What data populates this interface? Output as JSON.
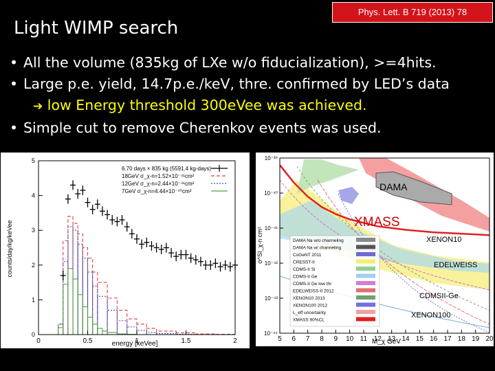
{
  "slide": {
    "title": "Light WIMP search",
    "reference": "Phys. Lett. B 719 (2013) 78",
    "bullets": [
      {
        "text": "All the volume (835kg of LXe w/o fiducialization), >=4hits."
      },
      {
        "text": "Large p.e. yield, 14.7p.e./keV, thre. confirmed by LED’s data",
        "sub": "low Energy threshold 300eVee was achieved."
      },
      {
        "text": "Simple cut to remove Cherenkov events was used."
      }
    ],
    "bullet_char": "•",
    "arrow_char": "➔"
  },
  "chart_data": [
    {
      "type": "line",
      "title": "",
      "xlabel": "energy [keVee]",
      "ylabel": "counts/day/kg/keVee",
      "xlim": [
        0,
        2
      ],
      "ylim": [
        0,
        5
      ],
      "xticks": [
        0,
        0.5,
        1,
        1.5,
        2
      ],
      "xtick_labels": [
        "0",
        "0.5",
        "1",
        "1.5",
        "2"
      ],
      "yticks": [
        0,
        1,
        2,
        3,
        4,
        5
      ],
      "legend_placement": "top-right",
      "legend": [
        {
          "label": "6.70 days × 835 kg (5591.4 kg-days)",
          "style": "data"
        },
        {
          "label": "18GeV σ_χ-n=1.52×10⁻⁴¹cm²",
          "style": "dashed",
          "color": "#d94040"
        },
        {
          "label": "12GeV σ_χ-n=2.44×10⁻⁴¹cm²",
          "style": "dotted",
          "color": "#4050c0"
        },
        {
          "label": "7GeV σ_χ-n=4.44×10⁻⁴⁰cm²",
          "style": "solid",
          "color": "#50a040"
        }
      ],
      "data_points": [
        {
          "x": 0.25,
          "y": 1.7
        },
        {
          "x": 0.3,
          "y": 3.9
        },
        {
          "x": 0.35,
          "y": 4.3
        },
        {
          "x": 0.4,
          "y": 4.05
        },
        {
          "x": 0.45,
          "y": 4.15
        },
        {
          "x": 0.5,
          "y": 3.8
        },
        {
          "x": 0.55,
          "y": 3.6
        },
        {
          "x": 0.6,
          "y": 3.75
        },
        {
          "x": 0.65,
          "y": 3.55
        },
        {
          "x": 0.7,
          "y": 3.45
        },
        {
          "x": 0.75,
          "y": 3.3
        },
        {
          "x": 0.8,
          "y": 3.25
        },
        {
          "x": 0.85,
          "y": 3.3
        },
        {
          "x": 0.9,
          "y": 3.1
        },
        {
          "x": 0.95,
          "y": 2.9
        },
        {
          "x": 1.0,
          "y": 2.75
        },
        {
          "x": 1.05,
          "y": 2.6
        },
        {
          "x": 1.1,
          "y": 2.65
        },
        {
          "x": 1.15,
          "y": 2.55
        },
        {
          "x": 1.2,
          "y": 2.5
        },
        {
          "x": 1.25,
          "y": 2.45
        },
        {
          "x": 1.3,
          "y": 2.5
        },
        {
          "x": 1.35,
          "y": 2.35
        },
        {
          "x": 1.4,
          "y": 2.25
        },
        {
          "x": 1.45,
          "y": 2.3
        },
        {
          "x": 1.5,
          "y": 2.3
        },
        {
          "x": 1.55,
          "y": 2.2
        },
        {
          "x": 1.6,
          "y": 2.15
        },
        {
          "x": 1.65,
          "y": 2.1
        },
        {
          "x": 1.7,
          "y": 2.0
        },
        {
          "x": 1.75,
          "y": 2.0
        },
        {
          "x": 1.8,
          "y": 2.05
        },
        {
          "x": 1.85,
          "y": 1.95
        },
        {
          "x": 1.9,
          "y": 2.0
        },
        {
          "x": 1.95,
          "y": 1.95
        },
        {
          "x": 2.0,
          "y": 2.0
        }
      ],
      "series": [
        {
          "name": "18GeV",
          "color": "#d94040",
          "dash": "5,3",
          "x": [
            0.15,
            0.2,
            0.25,
            0.3,
            0.35,
            0.4,
            0.45,
            0.5,
            0.55,
            0.6,
            0.7,
            0.8,
            0.9,
            1.0,
            1.1,
            1.2,
            1.4,
            1.6,
            1.8,
            2.0
          ],
          "y": [
            0,
            0.3,
            2.7,
            3.4,
            3.2,
            2.9,
            2.5,
            2.2,
            1.8,
            1.5,
            1.05,
            0.7,
            0.45,
            0.3,
            0.18,
            0.1,
            0.05,
            0.02,
            0.01,
            0
          ]
        },
        {
          "name": "12GeV",
          "color": "#4050c0",
          "dash": "2,2",
          "x": [
            0.15,
            0.2,
            0.25,
            0.3,
            0.35,
            0.4,
            0.45,
            0.5,
            0.55,
            0.6,
            0.7,
            0.8,
            0.9,
            1.0,
            1.1,
            1.2,
            1.4,
            1.6,
            2.0
          ],
          "y": [
            0,
            0.3,
            2.1,
            3.1,
            3.0,
            2.6,
            2.2,
            1.8,
            1.4,
            1.1,
            0.7,
            0.4,
            0.22,
            0.12,
            0.06,
            0.03,
            0.01,
            0,
            0
          ]
        },
        {
          "name": "7GeV",
          "color": "#50a040",
          "dash": "",
          "x": [
            0.15,
            0.2,
            0.25,
            0.3,
            0.35,
            0.4,
            0.45,
            0.5,
            0.55,
            0.6,
            0.65,
            0.7,
            0.8,
            0.9,
            1.0,
            1.2,
            1.5,
            2.0
          ],
          "y": [
            0,
            0.2,
            1.45,
            1.9,
            1.6,
            1.15,
            0.8,
            0.5,
            0.3,
            0.18,
            0.1,
            0.06,
            0.02,
            0.01,
            0,
            0,
            0,
            0
          ]
        }
      ]
    },
    {
      "type": "line",
      "title": "",
      "xlabel": "M_χ  GeV",
      "ylabel": "σ^SI_χ-n  cm²",
      "log_y": true,
      "xlim": [
        5,
        20
      ],
      "ylim_exp": [
        -44,
        -39
      ],
      "xticks": [
        5,
        6,
        7,
        8,
        9,
        10,
        11,
        12,
        13,
        14,
        15,
        16,
        17,
        18,
        19,
        20
      ],
      "ytick_labels": [
        "10⁻³⁹",
        "10⁻⁴⁰",
        "10⁻⁴¹",
        "10⁻⁴²",
        "10⁻⁴³",
        "10⁻⁴⁴"
      ],
      "legend_placement": "bottom-left",
      "legend": [
        {
          "label": "DAMA Na w/o channeling",
          "color": "#888888"
        },
        {
          "label": "DAMA Na w/ channeling",
          "color": "#555555"
        },
        {
          "label": "CoGeNT 2011",
          "color": "#6b6bd6"
        },
        {
          "label": "CRESST-II",
          "color": "#f0f070"
        },
        {
          "label": "CDMS-II Si",
          "color": "#90d090"
        },
        {
          "label": "CDMS-II Ge",
          "color": "#a0d0f0"
        },
        {
          "label": "CDMS-II Ge low thr",
          "color": "#d080d0"
        },
        {
          "label": "EDELWEISS-II 2012",
          "color": "#e07070"
        },
        {
          "label": "XENON10 2013",
          "color": "#70a070"
        },
        {
          "label": "XENON100 2012",
          "color": "#7070e0"
        },
        {
          "label": "L_eff uncertainty",
          "color": "#f0a0a0"
        },
        {
          "label": "XMASS 90%CL",
          "color": "#e02020"
        }
      ],
      "annotations": [
        {
          "text": "DAMA",
          "color": "#000000"
        },
        {
          "text": "XMASS",
          "color": "#cc0000"
        },
        {
          "text": "XENON10",
          "color": "#000000"
        },
        {
          "text": "EDELWEISS",
          "color": "#000000"
        },
        {
          "text": "CDMSII-Ge",
          "color": "#000000"
        },
        {
          "text": "XENON100",
          "color": "#000000"
        }
      ],
      "xmass_limit": {
        "x": [
          5,
          6,
          7,
          8,
          9,
          10,
          12,
          14,
          16,
          18,
          20
        ],
        "log_y": [
          -39.2,
          -39.7,
          -40.1,
          -40.4,
          -40.6,
          -40.75,
          -40.95,
          -41.05,
          -41.12,
          -41.16,
          -41.2
        ]
      }
    }
  ]
}
